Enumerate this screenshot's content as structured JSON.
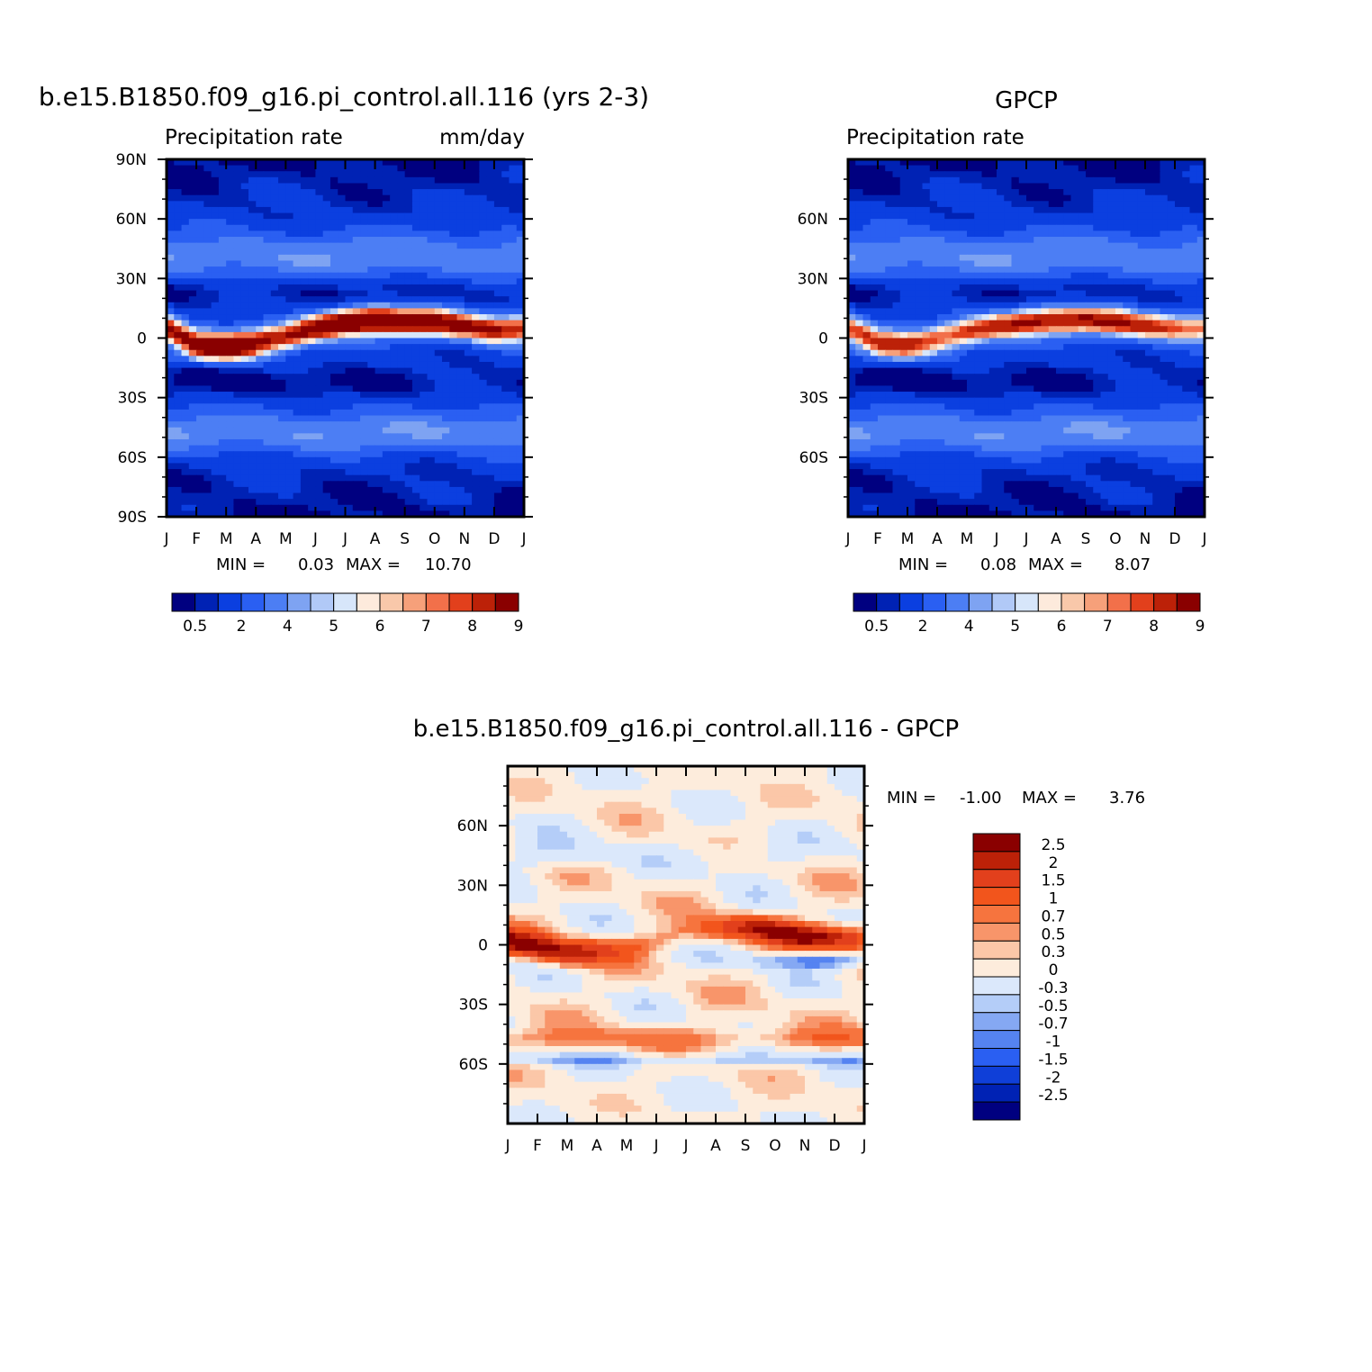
{
  "figure": {
    "panel_model": {
      "title": "b.e15.B1850.f09_g16.pi_control.all.116 (yrs 2-3)",
      "left_string": "Precipitation rate",
      "right_string": "mm/day",
      "min_label": "MIN =",
      "min_value": "0.03",
      "max_label": "MAX =",
      "max_value": "10.70"
    },
    "panel_obs": {
      "title": "GPCP",
      "left_string": "Precipitation rate",
      "right_string": "",
      "min_label": "MIN =",
      "min_value": "0.08",
      "max_label": "MAX =",
      "max_value": "8.07"
    },
    "panel_diff": {
      "title": "b.e15.B1850.f09_g16.pi_control.all.116 - GPCP",
      "min_label": "MIN =",
      "min_value": "-1.00",
      "max_label": "MAX =",
      "max_value": "3.76"
    }
  },
  "chart_data": [
    {
      "type": "heatmap",
      "title": "b.e15.B1850.f09_g16.pi_control.all.116 (yrs 2-3)",
      "subtitle_left": "Precipitation rate",
      "subtitle_right": "mm/day",
      "x_ticks": [
        "J",
        "F",
        "M",
        "A",
        "M",
        "J",
        "J",
        "A",
        "S",
        "O",
        "N",
        "D",
        "J"
      ],
      "y_ticks": [
        "90N",
        "60N",
        "30N",
        "0",
        "30S",
        "60S",
        "90S"
      ],
      "ylim": [
        -90,
        90
      ],
      "colorbar_labels": [
        "0.5",
        "2",
        "4",
        "5",
        "6",
        "7",
        "8",
        "9"
      ],
      "colorbar_colors": [
        "#000080",
        "#0022b4",
        "#0b3fe0",
        "#2a5ff2",
        "#4c7ef4",
        "#7ea3f2",
        "#b1c9f7",
        "#d7e6fa",
        "#fdeadc",
        "#f9c8aa",
        "#f6a07a",
        "#f2704a",
        "#e2401c",
        "#bc2108",
        "#8a0000"
      ],
      "min": 0.03,
      "max": 10.7,
      "itcz": {
        "months": [
          0,
          1,
          2,
          3,
          4,
          5,
          6,
          7,
          8,
          9,
          10,
          11,
          12
        ],
        "lat": [
          5,
          -3,
          -4,
          -2,
          1,
          5,
          8,
          9,
          8,
          8,
          6,
          4,
          5
        ],
        "peak": [
          7.5,
          7.5,
          9.5,
          8.5,
          8,
          9,
          10,
          10.5,
          9.5,
          9,
          8,
          8,
          7.5
        ]
      }
    },
    {
      "type": "heatmap",
      "title": "GPCP",
      "subtitle_left": "Precipitation rate",
      "x_ticks": [
        "J",
        "F",
        "M",
        "A",
        "M",
        "J",
        "J",
        "A",
        "S",
        "O",
        "N",
        "D",
        "J"
      ],
      "y_ticks": [
        "60N",
        "30N",
        "0",
        "30S",
        "60S"
      ],
      "ylim": [
        -90,
        90
      ],
      "colorbar_labels": [
        "0.5",
        "2",
        "4",
        "5",
        "6",
        "7",
        "8",
        "9"
      ],
      "colorbar_colors": [
        "#000080",
        "#0022b4",
        "#0b3fe0",
        "#2a5ff2",
        "#4c7ef4",
        "#7ea3f2",
        "#b1c9f7",
        "#d7e6fa",
        "#fdeadc",
        "#f9c8aa",
        "#f6a07a",
        "#f2704a",
        "#e2401c",
        "#bc2108",
        "#8a0000"
      ],
      "min": 0.08,
      "max": 8.07,
      "itcz": {
        "months": [
          0,
          1,
          2,
          3,
          4,
          5,
          6,
          7,
          8,
          9,
          10,
          11,
          12
        ],
        "lat": [
          5,
          -2,
          -3,
          0,
          3,
          6,
          8,
          9,
          9,
          8,
          6,
          5,
          5
        ],
        "peak": [
          6,
          6.3,
          6.5,
          6.5,
          7,
          7.5,
          7.8,
          8,
          7.8,
          7.5,
          7,
          6.5,
          6
        ]
      }
    },
    {
      "type": "heatmap",
      "title": "b.e15.B1850.f09_g16.pi_control.all.116 - GPCP",
      "x_ticks": [
        "J",
        "F",
        "M",
        "A",
        "M",
        "J",
        "J",
        "A",
        "S",
        "O",
        "N",
        "D",
        "J"
      ],
      "y_ticks": [
        "60N",
        "30N",
        "0",
        "30S",
        "60S"
      ],
      "ylim": [
        -90,
        90
      ],
      "colorbar_labels": [
        "2.5",
        "2",
        "1.5",
        "1",
        "0.7",
        "0.5",
        "0.3",
        "0",
        "-0.3",
        "-0.5",
        "-0.7",
        "-1",
        "-1.5",
        "-2",
        "-2.5"
      ],
      "colorbar_colors": [
        "#8a0000",
        "#bc2108",
        "#e2401c",
        "#f2551c",
        "#f6743e",
        "#f8956a",
        "#fbc7a8",
        "#fdecdc",
        "#dbe8fb",
        "#b4cdf8",
        "#85a8f3",
        "#5583f1",
        "#2a5ff2",
        "#0f3fd8",
        "#0022b4",
        "#000080"
      ],
      "min": -1.0,
      "max": 3.76
    }
  ]
}
